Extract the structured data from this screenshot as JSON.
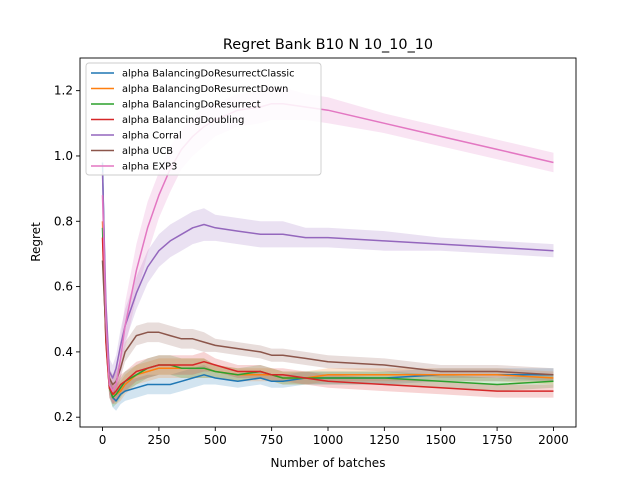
{
  "chart_data": {
    "type": "line",
    "title": "Regret Bank B10 N 10_10_10",
    "xlabel": "Number of batches",
    "ylabel": "Regret",
    "xlim": [
      -100,
      2100
    ],
    "ylim": [
      0.17,
      1.3
    ],
    "xticks": [
      0,
      250,
      500,
      750,
      1000,
      1250,
      1500,
      1750,
      2000
    ],
    "yticks": [
      0.2,
      0.4,
      0.6,
      0.8,
      1.0,
      1.2
    ],
    "xtick_labels": [
      "0",
      "250",
      "500",
      "750",
      "1000",
      "1250",
      "1500",
      "1750",
      "2000"
    ],
    "ytick_labels": [
      "0.2",
      "0.4",
      "0.6",
      "0.8",
      "1.0",
      "1.2"
    ],
    "grid": false,
    "legend_position": "upper-left",
    "series": [
      {
        "name": "alpha BalancingDoResurrectClassic",
        "color": "#1f77b4",
        "x": [
          0,
          15,
          30,
          45,
          60,
          80,
          100,
          150,
          200,
          250,
          300,
          350,
          400,
          450,
          500,
          600,
          700,
          750,
          800,
          900,
          1000,
          1250,
          1500,
          1750,
          2000
        ],
        "y": [
          0.98,
          0.48,
          0.3,
          0.26,
          0.25,
          0.27,
          0.28,
          0.29,
          0.3,
          0.3,
          0.3,
          0.31,
          0.32,
          0.33,
          0.32,
          0.31,
          0.32,
          0.31,
          0.31,
          0.32,
          0.32,
          0.32,
          0.33,
          0.33,
          0.33
        ],
        "band": [
          0.05,
          0.04,
          0.03,
          0.03,
          0.03,
          0.03,
          0.03,
          0.03,
          0.03,
          0.03,
          0.03,
          0.03,
          0.03,
          0.03,
          0.02,
          0.02,
          0.02,
          0.02,
          0.02,
          0.02,
          0.02,
          0.02,
          0.02,
          0.02,
          0.02
        ]
      },
      {
        "name": "alpha BalancingDoResurrectDown",
        "color": "#ff7f0e",
        "x": [
          0,
          15,
          30,
          45,
          60,
          80,
          100,
          150,
          200,
          250,
          300,
          350,
          400,
          450,
          500,
          600,
          700,
          750,
          800,
          900,
          1000,
          1250,
          1500,
          1750,
          2000
        ],
        "y": [
          0.8,
          0.45,
          0.3,
          0.27,
          0.27,
          0.28,
          0.3,
          0.33,
          0.34,
          0.35,
          0.35,
          0.35,
          0.35,
          0.35,
          0.34,
          0.33,
          0.33,
          0.33,
          0.32,
          0.32,
          0.33,
          0.33,
          0.33,
          0.33,
          0.32
        ],
        "band": [
          0.05,
          0.04,
          0.03,
          0.03,
          0.03,
          0.03,
          0.03,
          0.03,
          0.03,
          0.03,
          0.03,
          0.03,
          0.03,
          0.03,
          0.02,
          0.02,
          0.02,
          0.02,
          0.02,
          0.02,
          0.02,
          0.02,
          0.02,
          0.02,
          0.02
        ]
      },
      {
        "name": "alpha BalancingDoResurrect",
        "color": "#2ca02c",
        "x": [
          0,
          15,
          30,
          45,
          60,
          80,
          100,
          150,
          200,
          250,
          300,
          350,
          400,
          450,
          500,
          600,
          700,
          750,
          800,
          900,
          1000,
          1250,
          1500,
          1750,
          2000
        ],
        "y": [
          0.78,
          0.44,
          0.29,
          0.26,
          0.27,
          0.29,
          0.31,
          0.33,
          0.35,
          0.36,
          0.36,
          0.35,
          0.35,
          0.35,
          0.34,
          0.33,
          0.34,
          0.33,
          0.32,
          0.32,
          0.32,
          0.32,
          0.31,
          0.3,
          0.31
        ],
        "band": [
          0.05,
          0.04,
          0.03,
          0.03,
          0.03,
          0.03,
          0.03,
          0.03,
          0.03,
          0.03,
          0.03,
          0.03,
          0.03,
          0.03,
          0.02,
          0.02,
          0.02,
          0.02,
          0.02,
          0.02,
          0.02,
          0.02,
          0.02,
          0.02,
          0.02
        ]
      },
      {
        "name": "alpha BalancingDoubling",
        "color": "#d62728",
        "x": [
          0,
          15,
          30,
          45,
          60,
          80,
          100,
          150,
          200,
          250,
          300,
          350,
          400,
          450,
          500,
          600,
          700,
          750,
          800,
          900,
          1000,
          1250,
          1500,
          1750,
          2000
        ],
        "y": [
          0.75,
          0.43,
          0.29,
          0.27,
          0.28,
          0.3,
          0.31,
          0.34,
          0.35,
          0.36,
          0.36,
          0.36,
          0.36,
          0.37,
          0.36,
          0.34,
          0.34,
          0.33,
          0.33,
          0.32,
          0.31,
          0.3,
          0.29,
          0.28,
          0.28
        ],
        "band": [
          0.05,
          0.04,
          0.03,
          0.03,
          0.03,
          0.03,
          0.03,
          0.03,
          0.03,
          0.03,
          0.03,
          0.03,
          0.03,
          0.03,
          0.02,
          0.02,
          0.02,
          0.02,
          0.02,
          0.02,
          0.02,
          0.02,
          0.02,
          0.02,
          0.02
        ]
      },
      {
        "name": "alpha Corral",
        "color": "#9467bd",
        "x": [
          0,
          15,
          30,
          45,
          60,
          80,
          100,
          150,
          200,
          250,
          300,
          350,
          400,
          450,
          500,
          600,
          700,
          750,
          800,
          900,
          1000,
          1250,
          1500,
          1750,
          2000
        ],
        "y": [
          0.95,
          0.55,
          0.34,
          0.32,
          0.35,
          0.42,
          0.48,
          0.58,
          0.66,
          0.71,
          0.74,
          0.76,
          0.78,
          0.79,
          0.78,
          0.77,
          0.76,
          0.76,
          0.76,
          0.75,
          0.75,
          0.74,
          0.73,
          0.72,
          0.71
        ],
        "band": [
          0.06,
          0.05,
          0.04,
          0.04,
          0.04,
          0.05,
          0.05,
          0.05,
          0.05,
          0.05,
          0.05,
          0.05,
          0.05,
          0.05,
          0.04,
          0.04,
          0.04,
          0.04,
          0.04,
          0.03,
          0.03,
          0.03,
          0.02,
          0.02,
          0.02
        ]
      },
      {
        "name": "alpha UCB",
        "color": "#8c564b",
        "x": [
          0,
          15,
          30,
          45,
          60,
          80,
          100,
          150,
          200,
          250,
          300,
          350,
          400,
          450,
          500,
          600,
          700,
          750,
          800,
          900,
          1000,
          1250,
          1500,
          1750,
          2000
        ],
        "y": [
          0.68,
          0.46,
          0.32,
          0.3,
          0.31,
          0.35,
          0.4,
          0.45,
          0.46,
          0.46,
          0.45,
          0.44,
          0.44,
          0.43,
          0.42,
          0.41,
          0.4,
          0.39,
          0.39,
          0.38,
          0.37,
          0.36,
          0.34,
          0.34,
          0.33
        ],
        "band": [
          0.05,
          0.04,
          0.03,
          0.03,
          0.03,
          0.03,
          0.03,
          0.03,
          0.03,
          0.03,
          0.03,
          0.03,
          0.03,
          0.03,
          0.02,
          0.02,
          0.02,
          0.02,
          0.02,
          0.02,
          0.02,
          0.02,
          0.02,
          0.02,
          0.02
        ]
      },
      {
        "name": "alpha EXP3",
        "color": "#e377c2",
        "x": [
          0,
          15,
          30,
          45,
          60,
          80,
          100,
          150,
          200,
          250,
          300,
          350,
          400,
          450,
          500,
          600,
          700,
          750,
          800,
          900,
          1000,
          1250,
          1500,
          1750,
          2000
        ],
        "y": [
          0.88,
          0.5,
          0.3,
          0.28,
          0.3,
          0.38,
          0.48,
          0.65,
          0.78,
          0.88,
          0.96,
          1.02,
          1.06,
          1.09,
          1.11,
          1.14,
          1.15,
          1.16,
          1.16,
          1.15,
          1.14,
          1.1,
          1.06,
          1.02,
          0.98
        ],
        "band": [
          0.06,
          0.05,
          0.04,
          0.04,
          0.05,
          0.06,
          0.07,
          0.08,
          0.08,
          0.07,
          0.07,
          0.06,
          0.06,
          0.06,
          0.05,
          0.05,
          0.05,
          0.05,
          0.05,
          0.04,
          0.04,
          0.03,
          0.03,
          0.03,
          0.03
        ]
      }
    ]
  }
}
